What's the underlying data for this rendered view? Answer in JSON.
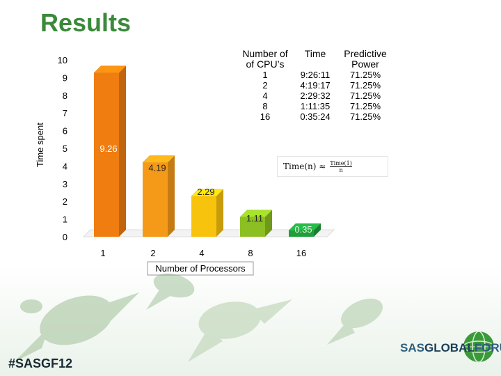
{
  "slide": {
    "title": "Results",
    "hashtag": "#SASGF12",
    "logo": {
      "prefix": "SAS",
      "main": "GLOBAL",
      "suffix": "FORUM"
    },
    "formula": {
      "lhs": "Time(n) ≈",
      "num": "Time(1)",
      "den": "n"
    }
  },
  "table": {
    "headers": [
      "Number of of CPU’s",
      "Time",
      "Predictive Power"
    ],
    "header_lines": [
      [
        "Number of",
        "of CPU’s"
      ],
      [
        "Time"
      ],
      [
        "Predictive",
        "Power"
      ]
    ],
    "rows": [
      [
        "1",
        "9:26:11",
        "71.25%"
      ],
      [
        "2",
        "4:19:17",
        "71.25%"
      ],
      [
        "4",
        "2:29:32",
        "71.25%"
      ],
      [
        "8",
        "1:11:35",
        "71.25%"
      ],
      [
        "16",
        "0:35:24",
        "71.25%"
      ]
    ]
  },
  "chart_data": {
    "type": "bar",
    "categories": [
      "1",
      "2",
      "4",
      "8",
      "16"
    ],
    "values": [
      9.26,
      4.19,
      2.29,
      1.11,
      0.35
    ],
    "data_labels": [
      "9.26",
      "4.19",
      "2.29",
      "1.11",
      "0.35"
    ],
    "yticks": [
      "0",
      "1",
      "2",
      "3",
      "4",
      "5",
      "6",
      "7",
      "8",
      "9",
      "10"
    ],
    "ylim": [
      0,
      10
    ],
    "xlabel": "Number of Processors",
    "ylabel": "Time spent",
    "colors": [
      "#f07d10",
      "#f59a18",
      "#f8c30c",
      "#8cbf22",
      "#1f9e3c"
    ],
    "grid": false,
    "legend": "none"
  }
}
